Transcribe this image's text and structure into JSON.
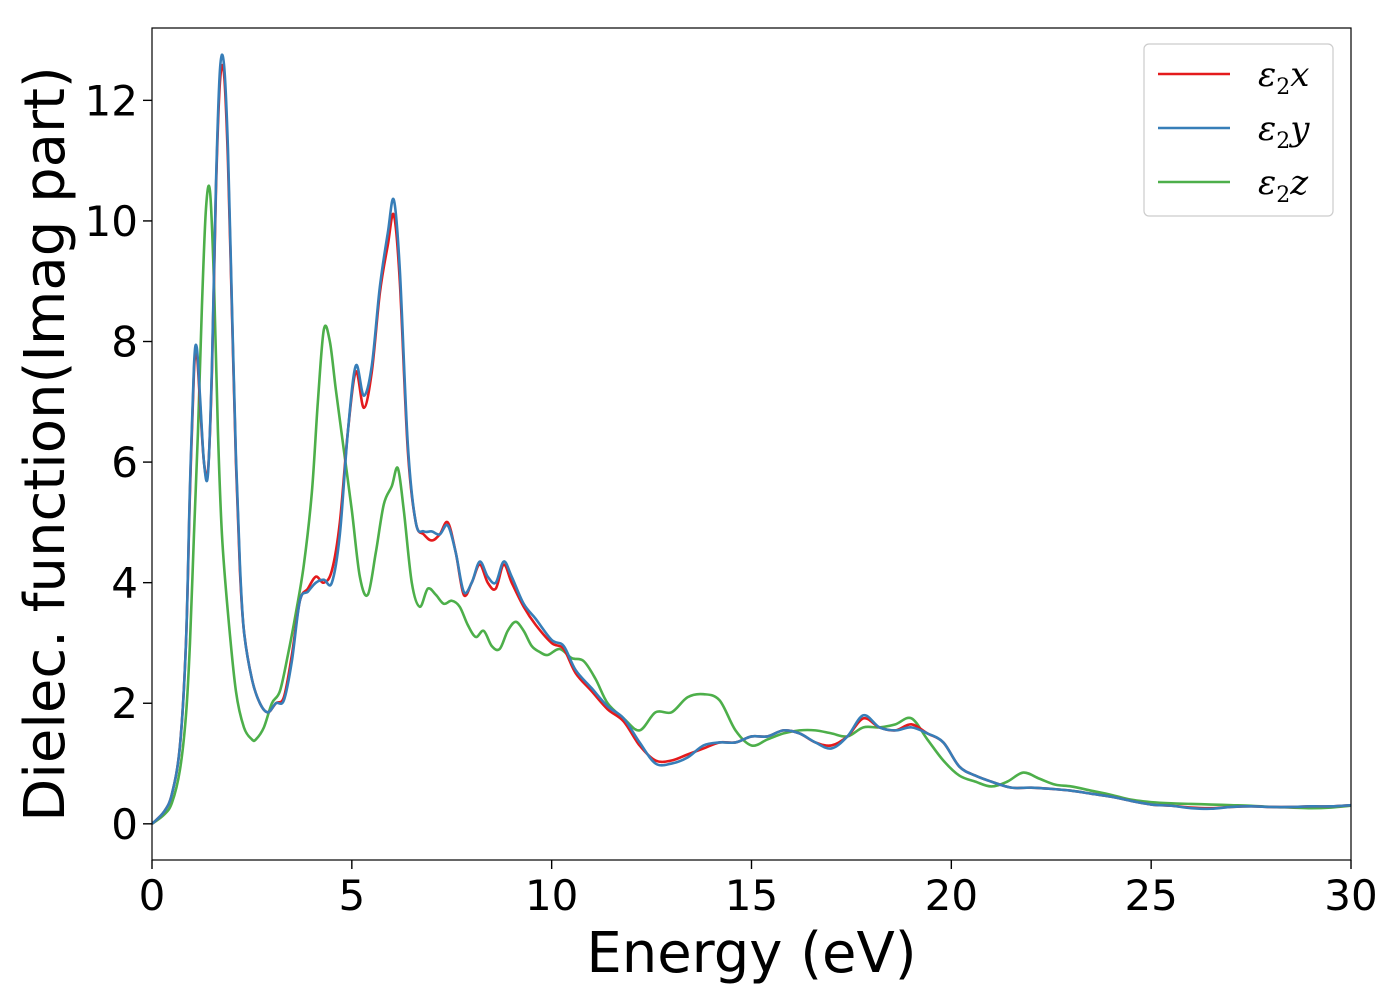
{
  "chart_data": {
    "type": "line",
    "xlabel": "Energy (eV)",
    "ylabel": "Dielec. function(Imag part)",
    "xlim": [
      0,
      30
    ],
    "ylim": [
      -0.6,
      13.2
    ],
    "xticks": [
      0,
      5,
      10,
      15,
      20,
      25,
      30
    ],
    "yticks": [
      0,
      2,
      4,
      6,
      8,
      10,
      12
    ],
    "grid": false,
    "legend_position": "top-right",
    "series": [
      {
        "name": "ε2x",
        "legend": {
          "symbol": "ε",
          "sub": "2",
          "var": "x"
        },
        "color": "#e41a1c",
        "x": [
          0,
          0.3,
          0.5,
          0.7,
          0.85,
          0.95,
          1.05,
          1.12,
          1.2,
          1.3,
          1.4,
          1.5,
          1.6,
          1.7,
          1.8,
          1.9,
          2.0,
          2.1,
          2.2,
          2.3,
          2.5,
          2.7,
          2.9,
          3.1,
          3.3,
          3.5,
          3.7,
          3.9,
          4.1,
          4.3,
          4.5,
          4.7,
          4.9,
          5.1,
          5.3,
          5.5,
          5.7,
          5.9,
          6.05,
          6.2,
          6.4,
          6.6,
          6.8,
          7.0,
          7.2,
          7.4,
          7.6,
          7.8,
          8.0,
          8.2,
          8.4,
          8.6,
          8.8,
          9.0,
          9.3,
          9.6,
          10.0,
          10.3,
          10.6,
          11.0,
          11.4,
          11.8,
          12.2,
          12.6,
          13.0,
          13.4,
          13.8,
          14.2,
          14.6,
          15.0,
          15.4,
          15.8,
          16.2,
          16.6,
          17.0,
          17.4,
          17.8,
          18.2,
          18.6,
          19.0,
          19.4,
          19.8,
          20.2,
          20.6,
          21.0,
          21.5,
          22.0,
          22.5,
          23.0,
          23.5,
          24.0,
          24.5,
          25.0,
          25.5,
          26.0,
          26.5,
          27.0,
          27.5,
          28.0,
          28.5,
          29.0,
          29.5,
          30.0
        ],
        "y": [
          0.0,
          0.2,
          0.5,
          1.3,
          3.0,
          5.5,
          7.5,
          7.8,
          7.0,
          6.0,
          5.85,
          7.5,
          10.5,
          12.3,
          12.45,
          11.0,
          8.5,
          6.0,
          4.2,
          3.2,
          2.4,
          2.0,
          1.85,
          2.0,
          2.1,
          2.8,
          3.7,
          3.9,
          4.1,
          4.0,
          4.2,
          5.0,
          6.5,
          7.5,
          6.9,
          7.5,
          8.8,
          9.6,
          10.1,
          9.0,
          6.2,
          5.0,
          4.8,
          4.7,
          4.8,
          5.0,
          4.5,
          3.8,
          4.0,
          4.3,
          4.0,
          3.9,
          4.3,
          4.0,
          3.6,
          3.3,
          3.0,
          2.9,
          2.5,
          2.2,
          1.9,
          1.7,
          1.3,
          1.05,
          1.05,
          1.15,
          1.25,
          1.35,
          1.35,
          1.45,
          1.45,
          1.55,
          1.5,
          1.35,
          1.3,
          1.45,
          1.75,
          1.6,
          1.55,
          1.65,
          1.5,
          1.35,
          0.95,
          0.8,
          0.7,
          0.6,
          0.6,
          0.58,
          0.55,
          0.5,
          0.45,
          0.38,
          0.32,
          0.3,
          0.27,
          0.26,
          0.28,
          0.29,
          0.28,
          0.28,
          0.29,
          0.29,
          0.31
        ]
      },
      {
        "name": "ε2y",
        "legend": {
          "symbol": "ε",
          "sub": "2",
          "var": "y"
        },
        "color": "#377eb8",
        "x": [
          0,
          0.3,
          0.5,
          0.7,
          0.85,
          0.95,
          1.05,
          1.12,
          1.2,
          1.3,
          1.4,
          1.5,
          1.6,
          1.7,
          1.8,
          1.9,
          2.0,
          2.1,
          2.2,
          2.3,
          2.5,
          2.7,
          2.9,
          3.1,
          3.3,
          3.5,
          3.7,
          3.9,
          4.1,
          4.3,
          4.5,
          4.7,
          4.9,
          5.1,
          5.3,
          5.5,
          5.7,
          5.9,
          6.05,
          6.2,
          6.4,
          6.6,
          6.8,
          7.0,
          7.2,
          7.4,
          7.6,
          7.8,
          8.0,
          8.2,
          8.4,
          8.6,
          8.8,
          9.0,
          9.3,
          9.6,
          10.0,
          10.3,
          10.6,
          11.0,
          11.4,
          11.8,
          12.2,
          12.6,
          13.0,
          13.4,
          13.8,
          14.2,
          14.6,
          15.0,
          15.4,
          15.8,
          16.2,
          16.6,
          17.0,
          17.4,
          17.8,
          18.2,
          18.6,
          19.0,
          19.4,
          19.8,
          20.2,
          20.6,
          21.0,
          21.5,
          22.0,
          22.5,
          23.0,
          23.5,
          24.0,
          24.5,
          25.0,
          25.5,
          26.0,
          26.5,
          27.0,
          27.5,
          28.0,
          28.5,
          29.0,
          29.5,
          30.0
        ],
        "y": [
          0.0,
          0.2,
          0.5,
          1.3,
          3.0,
          5.6,
          7.6,
          7.9,
          7.1,
          6.0,
          5.8,
          7.6,
          10.6,
          12.5,
          12.6,
          11.2,
          8.6,
          6.1,
          4.3,
          3.2,
          2.4,
          2.0,
          1.85,
          2.0,
          2.05,
          2.7,
          3.7,
          3.85,
          4.0,
          4.05,
          4.0,
          4.8,
          6.5,
          7.6,
          7.1,
          7.6,
          8.9,
          9.8,
          10.35,
          9.2,
          6.3,
          5.0,
          4.85,
          4.85,
          4.8,
          4.95,
          4.5,
          3.85,
          4.0,
          4.35,
          4.1,
          4.0,
          4.35,
          4.1,
          3.65,
          3.4,
          3.05,
          2.95,
          2.55,
          2.25,
          1.95,
          1.75,
          1.35,
          1.0,
          1.0,
          1.1,
          1.3,
          1.35,
          1.35,
          1.45,
          1.45,
          1.55,
          1.5,
          1.35,
          1.25,
          1.45,
          1.8,
          1.6,
          1.55,
          1.6,
          1.5,
          1.35,
          0.95,
          0.8,
          0.7,
          0.6,
          0.6,
          0.58,
          0.55,
          0.5,
          0.45,
          0.38,
          0.32,
          0.3,
          0.26,
          0.25,
          0.28,
          0.29,
          0.28,
          0.28,
          0.29,
          0.29,
          0.31
        ]
      },
      {
        "name": "ε2z",
        "legend": {
          "symbol": "ε",
          "sub": "2",
          "var": "z"
        },
        "color": "#4daf4a",
        "x": [
          0,
          0.3,
          0.5,
          0.7,
          0.85,
          0.95,
          1.05,
          1.15,
          1.25,
          1.35,
          1.45,
          1.55,
          1.65,
          1.75,
          1.9,
          2.1,
          2.3,
          2.5,
          2.6,
          2.8,
          3.0,
          3.2,
          3.4,
          3.6,
          3.8,
          4.0,
          4.15,
          4.3,
          4.45,
          4.6,
          4.8,
          5.0,
          5.2,
          5.4,
          5.6,
          5.8,
          6.0,
          6.15,
          6.3,
          6.5,
          6.7,
          6.9,
          7.1,
          7.3,
          7.5,
          7.7,
          7.9,
          8.1,
          8.3,
          8.5,
          8.7,
          8.9,
          9.1,
          9.3,
          9.5,
          9.7,
          9.9,
          10.2,
          10.5,
          10.8,
          11.1,
          11.4,
          11.8,
          12.2,
          12.6,
          13.0,
          13.4,
          13.8,
          14.2,
          14.6,
          15.0,
          15.4,
          15.8,
          16.2,
          16.6,
          17.0,
          17.4,
          17.8,
          18.2,
          18.6,
          19.0,
          19.4,
          19.8,
          20.2,
          20.6,
          21.0,
          21.4,
          21.8,
          22.2,
          22.6,
          23.0,
          23.5,
          24.0,
          24.5,
          25.0,
          25.5,
          26.0,
          26.5,
          27.0,
          27.5,
          28.0,
          28.5,
          29.0,
          29.5,
          30.0
        ],
        "y": [
          0.0,
          0.15,
          0.35,
          0.9,
          1.8,
          3.0,
          4.8,
          6.5,
          8.6,
          10.2,
          10.5,
          9.0,
          6.5,
          4.8,
          3.5,
          2.2,
          1.6,
          1.4,
          1.4,
          1.6,
          2.0,
          2.2,
          2.8,
          3.5,
          4.3,
          5.5,
          7.0,
          8.2,
          8.0,
          7.2,
          6.2,
          5.2,
          4.1,
          3.8,
          4.5,
          5.3,
          5.6,
          5.9,
          5.2,
          4.0,
          3.6,
          3.9,
          3.8,
          3.65,
          3.7,
          3.6,
          3.3,
          3.1,
          3.2,
          2.95,
          2.9,
          3.2,
          3.35,
          3.2,
          2.95,
          2.85,
          2.8,
          2.9,
          2.75,
          2.7,
          2.4,
          2.0,
          1.75,
          1.55,
          1.85,
          1.85,
          2.1,
          2.15,
          2.05,
          1.55,
          1.3,
          1.4,
          1.5,
          1.55,
          1.55,
          1.5,
          1.45,
          1.6,
          1.6,
          1.65,
          1.75,
          1.4,
          1.05,
          0.8,
          0.7,
          0.62,
          0.7,
          0.85,
          0.75,
          0.65,
          0.62,
          0.55,
          0.48,
          0.4,
          0.36,
          0.34,
          0.33,
          0.32,
          0.31,
          0.3,
          0.28,
          0.27,
          0.26,
          0.27,
          0.3
        ]
      }
    ]
  }
}
